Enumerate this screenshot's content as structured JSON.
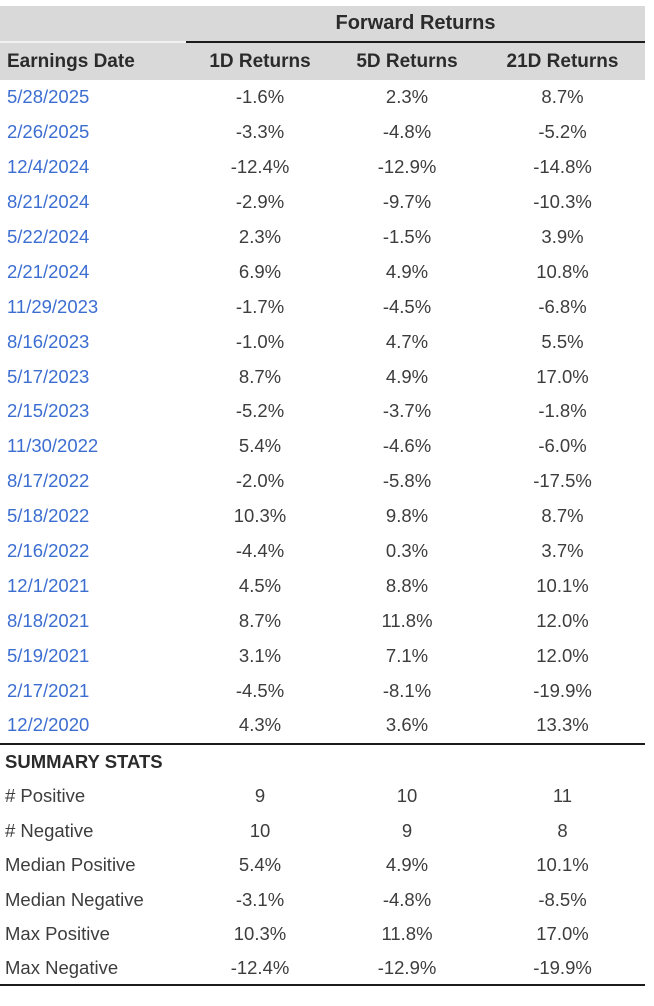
{
  "colors": {
    "header_bg": "#d9d9d9",
    "date_link": "#3c6ed1",
    "body_text": "#3d3d3d",
    "header_text": "#2b2b2b",
    "rule": "#1c1c1c",
    "page_bg": "#ffffff"
  },
  "header": {
    "group_title": "Forward Returns",
    "col_date": "Earnings Date",
    "col_1d": "1D Returns",
    "col_5d": "5D Returns",
    "col_21d": "21D Returns"
  },
  "table": {
    "rows": [
      {
        "date": "5/28/2025",
        "r1d": "-1.6%",
        "r5d": "2.3%",
        "r21d": "8.7%"
      },
      {
        "date": "2/26/2025",
        "r1d": "-3.3%",
        "r5d": "-4.8%",
        "r21d": "-5.2%"
      },
      {
        "date": "12/4/2024",
        "r1d": "-12.4%",
        "r5d": "-12.9%",
        "r21d": "-14.8%"
      },
      {
        "date": "8/21/2024",
        "r1d": "-2.9%",
        "r5d": "-9.7%",
        "r21d": "-10.3%"
      },
      {
        "date": "5/22/2024",
        "r1d": "2.3%",
        "r5d": "-1.5%",
        "r21d": "3.9%"
      },
      {
        "date": "2/21/2024",
        "r1d": "6.9%",
        "r5d": "4.9%",
        "r21d": "10.8%"
      },
      {
        "date": "11/29/2023",
        "r1d": "-1.7%",
        "r5d": "-4.5%",
        "r21d": "-6.8%"
      },
      {
        "date": "8/16/2023",
        "r1d": "-1.0%",
        "r5d": "4.7%",
        "r21d": "5.5%"
      },
      {
        "date": "5/17/2023",
        "r1d": "8.7%",
        "r5d": "4.9%",
        "r21d": "17.0%"
      },
      {
        "date": "2/15/2023",
        "r1d": "-5.2%",
        "r5d": "-3.7%",
        "r21d": "-1.8%"
      },
      {
        "date": "11/30/2022",
        "r1d": "5.4%",
        "r5d": "-4.6%",
        "r21d": "-6.0%"
      },
      {
        "date": "8/17/2022",
        "r1d": "-2.0%",
        "r5d": "-5.8%",
        "r21d": "-17.5%"
      },
      {
        "date": "5/18/2022",
        "r1d": "10.3%",
        "r5d": "9.8%",
        "r21d": "8.7%"
      },
      {
        "date": "2/16/2022",
        "r1d": "-4.4%",
        "r5d": "0.3%",
        "r21d": "3.7%"
      },
      {
        "date": "12/1/2021",
        "r1d": "4.5%",
        "r5d": "8.8%",
        "r21d": "10.1%"
      },
      {
        "date": "8/18/2021",
        "r1d": "8.7%",
        "r5d": "11.8%",
        "r21d": "12.0%"
      },
      {
        "date": "5/19/2021",
        "r1d": "3.1%",
        "r5d": "7.1%",
        "r21d": "12.0%"
      },
      {
        "date": "2/17/2021",
        "r1d": "-4.5%",
        "r5d": "-8.1%",
        "r21d": "-19.9%"
      },
      {
        "date": "12/2/2020",
        "r1d": "4.3%",
        "r5d": "3.6%",
        "r21d": "13.3%"
      }
    ]
  },
  "summary": {
    "title": "SUMMARY STATS",
    "rows": [
      {
        "label": "# Positive",
        "r1d": "9",
        "r5d": "10",
        "r21d": "11"
      },
      {
        "label": "# Negative",
        "r1d": "10",
        "r5d": "9",
        "r21d": "8"
      },
      {
        "label": "Median Positive",
        "r1d": "5.4%",
        "r5d": "4.9%",
        "r21d": "10.1%"
      },
      {
        "label": "Median Negative",
        "r1d": "-3.1%",
        "r5d": "-4.8%",
        "r21d": "-8.5%"
      },
      {
        "label": "Max Positive",
        "r1d": "10.3%",
        "r5d": "11.8%",
        "r21d": "17.0%"
      },
      {
        "label": "Max Negative",
        "r1d": "-12.4%",
        "r5d": "-12.9%",
        "r21d": "-19.9%"
      }
    ]
  }
}
